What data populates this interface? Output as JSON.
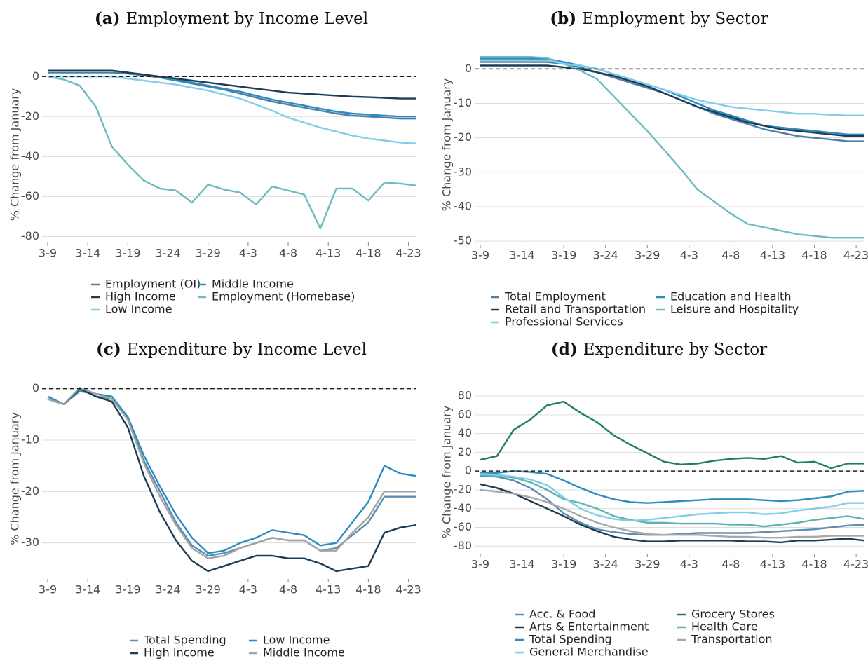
{
  "chart_data": [
    {
      "type": "line",
      "label": "(a)",
      "title": "Employment by Income Level",
      "ylabel": "% Change from January",
      "x": [
        0,
        2,
        4,
        6,
        8,
        10,
        12,
        14,
        16,
        18,
        20,
        22,
        24,
        26,
        28,
        30,
        32,
        34,
        36,
        38,
        40,
        42,
        44,
        46
      ],
      "xlim": [
        0,
        46
      ],
      "xticks": [
        {
          "value": 0,
          "label": "3-9"
        },
        {
          "value": 5,
          "label": "3-14"
        },
        {
          "value": 10,
          "label": "3-19"
        },
        {
          "value": 15,
          "label": "3-24"
        },
        {
          "value": 20,
          "label": "3-29"
        },
        {
          "value": 25,
          "label": "4-3"
        },
        {
          "value": 30,
          "label": "4-8"
        },
        {
          "value": 35,
          "label": "4-13"
        },
        {
          "value": 40,
          "label": "4-18"
        },
        {
          "value": 45,
          "label": "4-23"
        }
      ],
      "ylim": [
        -83,
        5
      ],
      "yticks": [
        -80,
        -60,
        -40,
        -20,
        0
      ],
      "grid": true,
      "reference_line": 0,
      "legend": "bottom",
      "series": [
        {
          "name": "Employment (OI)",
          "color": "#4f7ea3",
          "values": [
            2,
            2,
            2,
            2,
            2,
            1.5,
            0.5,
            -0.5,
            -2,
            -3.5,
            -5,
            -6.5,
            -8.5,
            -10.5,
            -12.5,
            -14,
            -15.5,
            -17,
            -18.5,
            -19.5,
            -20,
            -20.5,
            -21,
            -21
          ]
        },
        {
          "name": "Middle Income",
          "color": "#2b8cc2",
          "values": [
            3,
            3,
            3,
            3,
            3,
            2,
            1,
            0,
            -1.5,
            -3,
            -4.5,
            -6,
            -7.5,
            -9.5,
            -11.5,
            -13,
            -14.5,
            -16,
            -17.5,
            -18.5,
            -19,
            -19.5,
            -20,
            -20
          ]
        },
        {
          "name": "High Income",
          "color": "#1d3c55",
          "values": [
            3,
            3,
            3,
            3,
            3,
            2,
            1,
            0,
            -1,
            -2,
            -3,
            -4,
            -5,
            -6,
            -7,
            -8,
            -8.5,
            -9,
            -9.5,
            -10,
            -10.3,
            -10.6,
            -11,
            -11
          ]
        },
        {
          "name": "Employment (Homebase)",
          "color": "#6cbcc1",
          "values": [
            0,
            -1.5,
            -4.5,
            -15,
            -35,
            -44,
            -52,
            -56,
            -57,
            -63,
            -54,
            -56.5,
            -58,
            -64,
            -55,
            -57,
            -59,
            -76,
            -56,
            -56,
            -62,
            -53,
            -53.5,
            -54.5
          ]
        },
        {
          "name": "Low Income",
          "color": "#80cdec",
          "values": [
            0,
            0,
            0,
            0,
            0,
            -1,
            -2,
            -3,
            -4,
            -5.5,
            -7,
            -9,
            -11,
            -14,
            -17,
            -20.5,
            -23,
            -25.5,
            -27.5,
            -29.5,
            -31,
            -32,
            -33,
            -33.5
          ]
        }
      ]
    },
    {
      "type": "line",
      "label": "(b)",
      "title": "Employment by Sector",
      "ylabel": "% Change from January",
      "x": [
        0,
        2,
        4,
        6,
        8,
        10,
        12,
        14,
        16,
        18,
        20,
        22,
        24,
        26,
        28,
        30,
        32,
        34,
        36,
        38,
        40,
        42,
        44,
        46
      ],
      "xlim": [
        0,
        46
      ],
      "xticks": [
        {
          "value": 0,
          "label": "3-9"
        },
        {
          "value": 5,
          "label": "3-14"
        },
        {
          "value": 10,
          "label": "3-19"
        },
        {
          "value": 15,
          "label": "3-24"
        },
        {
          "value": 20,
          "label": "3-29"
        },
        {
          "value": 25,
          "label": "4-3"
        },
        {
          "value": 30,
          "label": "4-8"
        },
        {
          "value": 35,
          "label": "4-13"
        },
        {
          "value": 40,
          "label": "4-18"
        },
        {
          "value": 45,
          "label": "4-23"
        }
      ],
      "ylim": [
        -51,
        7
      ],
      "yticks": [
        -50,
        -40,
        -30,
        -20,
        -10,
        0
      ],
      "grid": true,
      "reference_line": 0,
      "legend": "bottom",
      "series": [
        {
          "name": "Total Employment",
          "color": "#4f7ea3",
          "values": [
            2,
            2,
            2,
            2,
            2,
            1.5,
            0.5,
            -1,
            -2.5,
            -4,
            -5.5,
            -7,
            -9,
            -11,
            -13,
            -14.5,
            -16,
            -17.5,
            -18.5,
            -19.5,
            -20,
            -20.5,
            -21,
            -21
          ]
        },
        {
          "name": "Education and Health",
          "color": "#2b8cc2",
          "values": [
            3,
            3,
            3,
            3,
            3,
            2,
            1,
            0,
            -1.5,
            -3,
            -4.5,
            -6,
            -8,
            -10,
            -12,
            -13.5,
            -15,
            -16.5,
            -17,
            -17.5,
            -18,
            -18.5,
            -19,
            -19
          ]
        },
        {
          "name": "Retail and Transportation",
          "color": "#1d3c55",
          "values": [
            1,
            1,
            1,
            1,
            1,
            0.5,
            0,
            -1,
            -2,
            -3.5,
            -5,
            -7,
            -9,
            -11,
            -12.5,
            -14,
            -15.5,
            -16.5,
            -17.5,
            -18,
            -18.5,
            -19,
            -19.5,
            -19.5
          ]
        },
        {
          "name": "Leisure and Hospitality",
          "color": "#6cbcc1",
          "values": [
            3.5,
            3.5,
            3.5,
            3.5,
            3.2,
            1.5,
            -0.5,
            -3,
            -8,
            -13,
            -18,
            -23.5,
            -29,
            -35,
            -38.5,
            -42,
            -45,
            -46,
            -47,
            -48,
            -48.5,
            -49,
            -49,
            -49
          ]
        },
        {
          "name": "Professional Services",
          "color": "#80cdec",
          "values": [
            2.5,
            2.5,
            2.5,
            2.5,
            2.5,
            1.5,
            1,
            0,
            -1.5,
            -3,
            -4.5,
            -6,
            -7.5,
            -9,
            -10,
            -11,
            -11.5,
            -12,
            -12.5,
            -13,
            -13,
            -13.3,
            -13.5,
            -13.5
          ]
        }
      ]
    },
    {
      "type": "line",
      "label": "(c)",
      "title": "Expenditure by Income Level",
      "ylabel": "% Change from January",
      "x": [
        0,
        2,
        4,
        6,
        8,
        10,
        12,
        14,
        16,
        18,
        20,
        22,
        24,
        26,
        28,
        30,
        32,
        34,
        36,
        38,
        40,
        42,
        44,
        46
      ],
      "xlim": [
        0,
        46
      ],
      "xticks": [
        {
          "value": 0,
          "label": "3-9"
        },
        {
          "value": 5,
          "label": "3-14"
        },
        {
          "value": 10,
          "label": "3-19"
        },
        {
          "value": 15,
          "label": "3-24"
        },
        {
          "value": 20,
          "label": "3-29"
        },
        {
          "value": 25,
          "label": "4-3"
        },
        {
          "value": 30,
          "label": "4-8"
        },
        {
          "value": 35,
          "label": "4-13"
        },
        {
          "value": 40,
          "label": "4-18"
        },
        {
          "value": 45,
          "label": "4-23"
        }
      ],
      "ylim": [
        -37,
        2
      ],
      "yticks": [
        -30,
        -20,
        -10,
        0
      ],
      "grid": true,
      "reference_line": 0,
      "legend": "bottom",
      "series": [
        {
          "name": "Total Spending",
          "color": "#5b8db5",
          "values": [
            -2,
            -3,
            0,
            -1.5,
            -2,
            -6,
            -14,
            -20,
            -26,
            -30.5,
            -32.5,
            -32,
            -31,
            -30,
            -29,
            -29.5,
            -29.5,
            -31.5,
            -31,
            -28.5,
            -26,
            -21,
            -21,
            -21
          ]
        },
        {
          "name": "Low Income",
          "color": "#2b8cc2",
          "values": [
            -1.5,
            -3,
            -0.5,
            -1,
            -1.5,
            -5.5,
            -13,
            -19,
            -24.5,
            -29,
            -32,
            -31.5,
            -30,
            -29,
            -27.5,
            -28,
            -28.5,
            -30.5,
            -30,
            -26,
            -22,
            -15,
            -16.5,
            -17
          ]
        },
        {
          "name": "High Income",
          "color": "#1d3c55",
          "values": [
            -2,
            -3,
            0,
            -1.5,
            -2.5,
            -7.5,
            -17,
            -24,
            -29.5,
            -33.5,
            -35.5,
            -34.5,
            -33.5,
            -32.5,
            -32.5,
            -33,
            -33,
            -34,
            -35.5,
            -35,
            -34.5,
            -28,
            -27,
            -26.5
          ]
        },
        {
          "name": "Middle Income",
          "color": "#a3a3a3",
          "values": [
            -2,
            -3,
            0.2,
            -1,
            -2,
            -6,
            -14.5,
            -21,
            -26.5,
            -31,
            -33,
            -32.5,
            -31,
            -30,
            -29,
            -29.5,
            -29.5,
            -31.5,
            -31.5,
            -28,
            -25,
            -20,
            -20,
            -20
          ]
        }
      ]
    },
    {
      "type": "line",
      "label": "(d)",
      "title": "Expenditure by Sector",
      "ylabel": "% Change from January",
      "x": [
        0,
        2,
        4,
        6,
        8,
        10,
        12,
        14,
        16,
        18,
        20,
        22,
        24,
        26,
        28,
        30,
        32,
        34,
        36,
        38,
        40,
        42,
        44,
        46
      ],
      "xlim": [
        0,
        46
      ],
      "xticks": [
        {
          "value": 0,
          "label": "3-9"
        },
        {
          "value": 5,
          "label": "3-14"
        },
        {
          "value": 10,
          "label": "3-19"
        },
        {
          "value": 15,
          "label": "3-24"
        },
        {
          "value": 20,
          "label": "3-29"
        },
        {
          "value": 25,
          "label": "4-3"
        },
        {
          "value": 30,
          "label": "4-8"
        },
        {
          "value": 35,
          "label": "4-13"
        },
        {
          "value": 40,
          "label": "4-18"
        },
        {
          "value": 45,
          "label": "4-23"
        }
      ],
      "ylim": [
        -88,
        86
      ],
      "yticks": [
        -80,
        -60,
        -40,
        -20,
        0,
        20,
        40,
        60,
        80
      ],
      "grid": true,
      "reference_line": 0,
      "legend": "bottom",
      "series": [
        {
          "name": "Acc. & Food",
          "color": "#5b8db5",
          "values": [
            -5,
            -6,
            -10,
            -18,
            -30,
            -45,
            -55,
            -62,
            -65,
            -67,
            -68,
            -68,
            -67,
            -66,
            -66,
            -66,
            -66,
            -65,
            -64,
            -63,
            -62,
            -60,
            -58,
            -57
          ]
        },
        {
          "name": "Grocery Stores",
          "color": "#1f7d6c",
          "values": [
            12,
            16,
            44,
            55,
            70,
            74,
            62,
            52,
            38,
            28,
            19,
            10,
            7,
            8,
            11,
            13,
            14,
            13,
            16,
            9,
            10,
            3,
            8,
            8
          ]
        },
        {
          "name": "Arts & Entertainment",
          "color": "#1d3c55",
          "values": [
            -14,
            -18,
            -24,
            -32,
            -40,
            -48,
            -57,
            -64,
            -70,
            -73,
            -75,
            -75,
            -74,
            -74,
            -74,
            -74,
            -75,
            -75,
            -76,
            -74,
            -74,
            -73,
            -72,
            -74
          ]
        },
        {
          "name": "Health Care",
          "color": "#5fb3a8",
          "values": [
            -4,
            -5,
            -7,
            -12,
            -20,
            -30,
            -34,
            -40,
            -48,
            -52,
            -55,
            -55,
            -56,
            -56,
            -56,
            -57,
            -57,
            -59,
            -57,
            -55,
            -52,
            -50,
            -48,
            -51
          ]
        },
        {
          "name": "Total Spending",
          "color": "#2b8cc2",
          "values": [
            -2,
            -2,
            0,
            -1,
            -3,
            -10,
            -18,
            -25,
            -30,
            -33,
            -34,
            -33,
            -32,
            -31,
            -30,
            -30,
            -30,
            -31,
            -32,
            -31,
            -29,
            -27,
            -22,
            -21
          ]
        },
        {
          "name": "Transportation",
          "color": "#a8a8a8",
          "values": [
            -20,
            -22,
            -24,
            -28,
            -33,
            -40,
            -48,
            -55,
            -60,
            -64,
            -67,
            -68,
            -68,
            -68,
            -69,
            -70,
            -70,
            -71,
            -71,
            -70,
            -70,
            -69,
            -69,
            -69
          ]
        },
        {
          "name": "General Merchandise",
          "color": "#80cdec",
          "values": [
            -3,
            -4,
            -6,
            -9,
            -15,
            -28,
            -40,
            -47,
            -51,
            -53,
            -52,
            -50,
            -48,
            -46,
            -45,
            -44,
            -44,
            -46,
            -45,
            -42,
            -40,
            -38,
            -34,
            -34
          ]
        }
      ]
    }
  ]
}
